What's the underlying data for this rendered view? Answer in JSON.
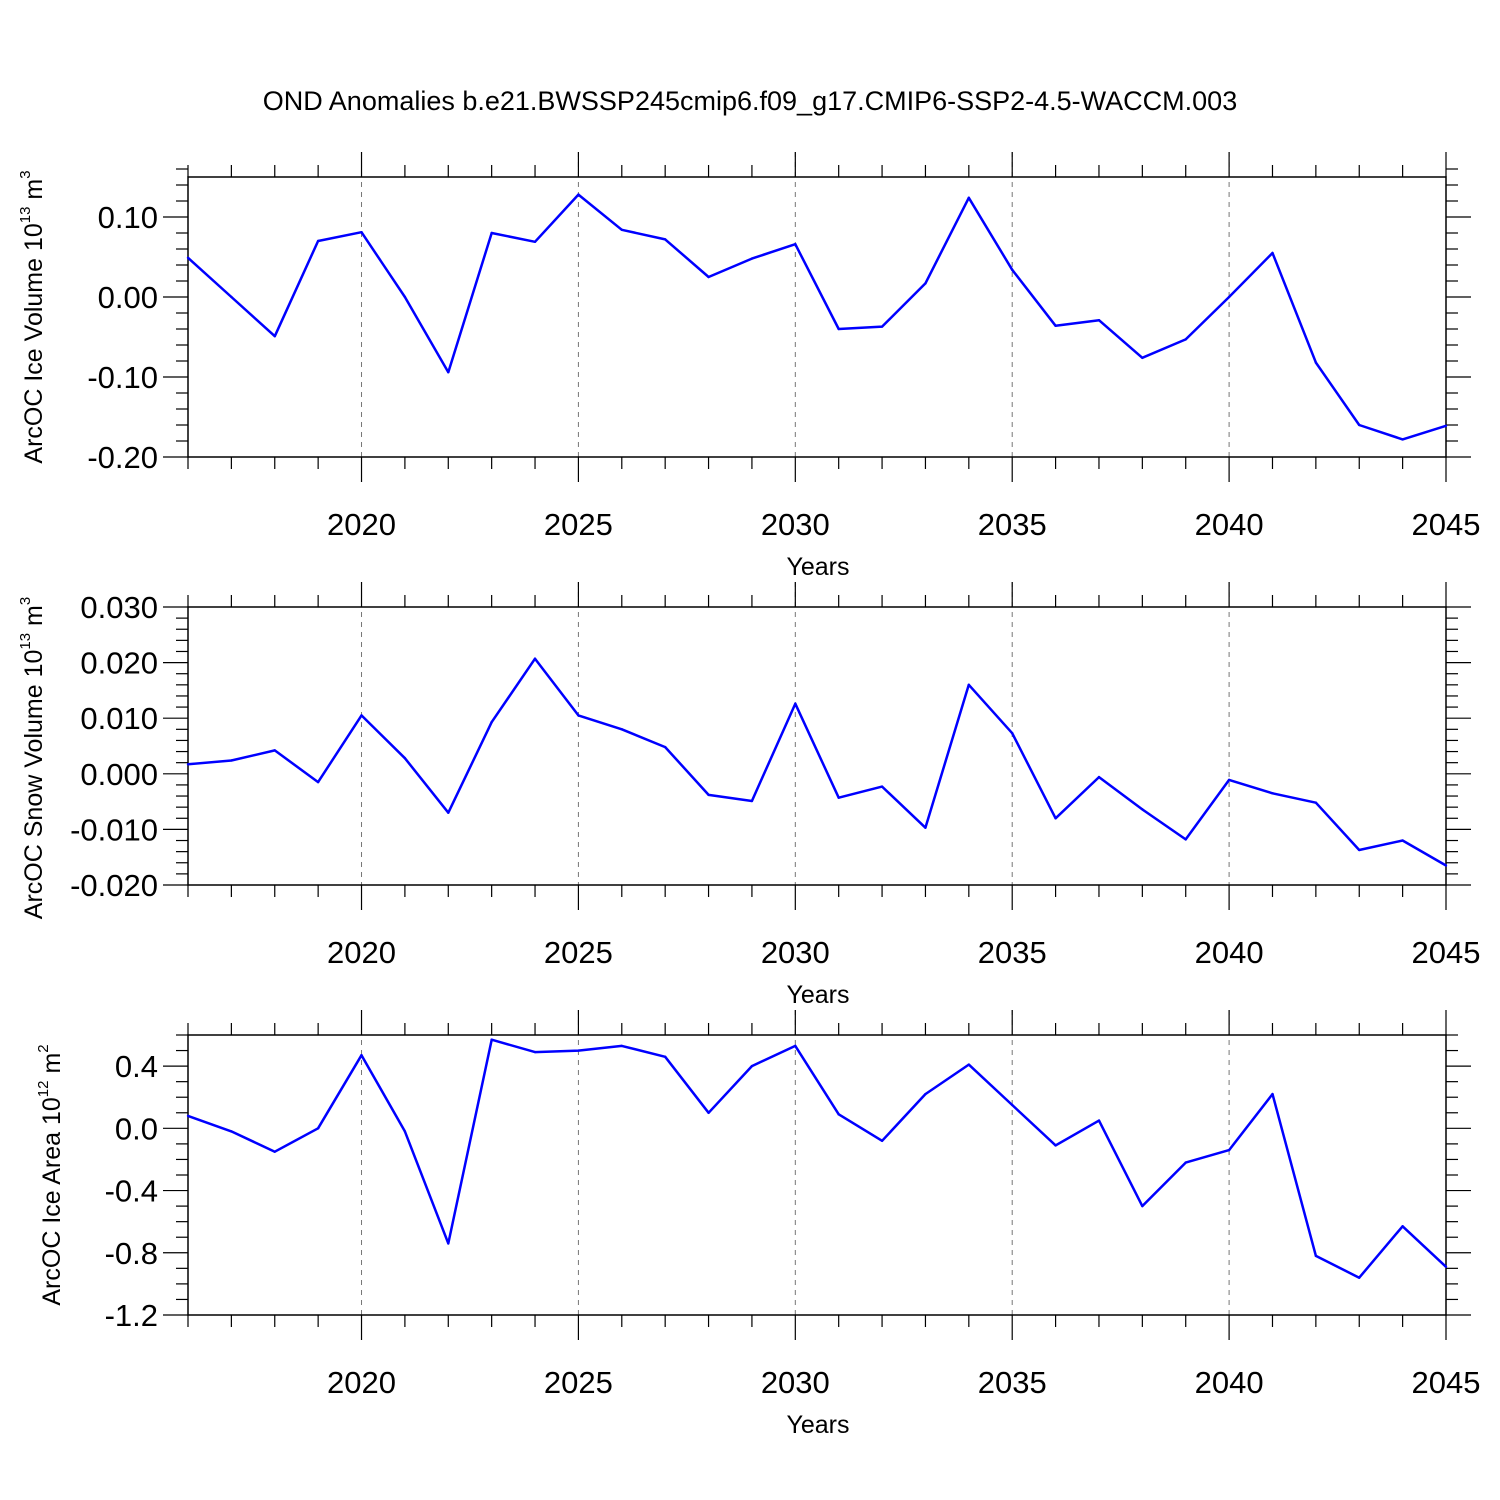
{
  "title": "OND Anomalies b.e21.BWSSP245cmip6.f09_g17.CMIP6-SSP2-4.5-WACCM.003",
  "colors": {
    "line": "#0000ff",
    "grid": "#777777",
    "axis": "#000000"
  },
  "chart_data": [
    {
      "type": "line",
      "panel": "ice-volume",
      "ylabel": {
        "text": "ArcOC Ice Volume 10",
        "sup": "13",
        "unit": " m",
        "unit_sup": "3"
      },
      "xlabel": "Years",
      "xlim": [
        2016,
        2045
      ],
      "ylim": [
        -0.2,
        0.15
      ],
      "yticks": [
        -0.2,
        -0.1,
        0.0,
        0.1
      ],
      "ytick_labels": [
        "-0.20",
        "-0.10",
        "0.00",
        "0.10"
      ],
      "y_minor_step": 0.02,
      "xticks": [
        2020,
        2025,
        2030,
        2035,
        2040,
        2045
      ],
      "xtick_labels": [
        "2020",
        "2025",
        "2030",
        "2035",
        "2040",
        "2045"
      ],
      "grid_x": [
        2020,
        2025,
        2030,
        2035,
        2040
      ],
      "x": [
        2016,
        2017,
        2018,
        2019,
        2020,
        2021,
        2022,
        2023,
        2024,
        2025,
        2026,
        2027,
        2028,
        2029,
        2030,
        2031,
        2032,
        2033,
        2034,
        2035,
        2036,
        2037,
        2038,
        2039,
        2040,
        2041,
        2042,
        2043,
        2044,
        2045
      ],
      "series": [
        {
          "name": "ArcOC Ice Volume",
          "values": [
            0.049,
            0.0,
            -0.049,
            0.07,
            0.081,
            0.0,
            -0.094,
            0.08,
            0.069,
            0.128,
            0.084,
            0.072,
            0.025,
            0.048,
            0.066,
            -0.04,
            -0.037,
            0.017,
            0.124,
            0.034,
            -0.036,
            -0.029,
            -0.076,
            -0.053,
            0.0,
            0.055,
            -0.082,
            -0.16,
            -0.178,
            -0.161
          ]
        }
      ]
    },
    {
      "type": "line",
      "panel": "snow-volume",
      "ylabel": {
        "text": "ArcOC Snow Volume 10",
        "sup": "13",
        "unit": " m",
        "unit_sup": "3"
      },
      "xlabel": "Years",
      "xlim": [
        2016,
        2045
      ],
      "ylim": [
        -0.02,
        0.03
      ],
      "yticks": [
        -0.02,
        -0.01,
        0.0,
        0.01,
        0.02,
        0.03
      ],
      "ytick_labels": [
        "-0.020",
        "-0.010",
        "0.000",
        "0.010",
        "0.020",
        "0.030"
      ],
      "y_minor_step": 0.002,
      "xticks": [
        2020,
        2025,
        2030,
        2035,
        2040,
        2045
      ],
      "xtick_labels": [
        "2020",
        "2025",
        "2030",
        "2035",
        "2040",
        "2045"
      ],
      "grid_x": [
        2020,
        2025,
        2030,
        2035,
        2040
      ],
      "x": [
        2016,
        2017,
        2018,
        2019,
        2020,
        2021,
        2022,
        2023,
        2024,
        2025,
        2026,
        2027,
        2028,
        2029,
        2030,
        2031,
        2032,
        2033,
        2034,
        2035,
        2036,
        2037,
        2038,
        2039,
        2040,
        2041,
        2042,
        2043,
        2044,
        2045
      ],
      "series": [
        {
          "name": "ArcOC Snow Volume",
          "values": [
            0.0017,
            0.0024,
            0.0042,
            -0.0015,
            0.0105,
            0.0028,
            -0.007,
            0.0093,
            0.0207,
            0.0105,
            0.008,
            0.0048,
            -0.0038,
            -0.0049,
            0.0126,
            -0.0043,
            -0.0023,
            -0.0097,
            0.016,
            0.0073,
            -0.008,
            -0.0006,
            -0.0064,
            -0.0118,
            -0.0011,
            -0.0035,
            -0.0052,
            -0.0137,
            -0.012,
            -0.0165
          ]
        }
      ]
    },
    {
      "type": "line",
      "panel": "ice-area",
      "ylabel": {
        "text": "ArcOC Ice Area 10",
        "sup": "12",
        "unit": " m",
        "unit_sup": "2"
      },
      "xlabel": "Years",
      "xlim": [
        2016,
        2045
      ],
      "ylim": [
        -1.2,
        0.6
      ],
      "yticks": [
        -1.2,
        -0.8,
        -0.4,
        0.0,
        0.4
      ],
      "ytick_labels": [
        "-1.2",
        "-0.8",
        "-0.4",
        "0.0",
        "0.4"
      ],
      "y_minor_step": 0.1,
      "xticks": [
        2020,
        2025,
        2030,
        2035,
        2040,
        2045
      ],
      "xtick_labels": [
        "2020",
        "2025",
        "2030",
        "2035",
        "2040",
        "2045"
      ],
      "grid_x": [
        2020,
        2025,
        2030,
        2035,
        2040
      ],
      "x": [
        2016,
        2017,
        2018,
        2019,
        2020,
        2021,
        2022,
        2023,
        2024,
        2025,
        2026,
        2027,
        2028,
        2029,
        2030,
        2031,
        2032,
        2033,
        2034,
        2035,
        2036,
        2037,
        2038,
        2039,
        2040,
        2041,
        2042,
        2043,
        2044,
        2045
      ],
      "series": [
        {
          "name": "ArcOC Ice Area",
          "values": [
            0.08,
            -0.02,
            -0.15,
            0.0,
            0.47,
            -0.02,
            -0.74,
            0.57,
            0.49,
            0.5,
            0.53,
            0.46,
            0.1,
            0.4,
            0.53,
            0.09,
            -0.08,
            0.22,
            0.41,
            0.15,
            -0.11,
            0.05,
            -0.5,
            -0.22,
            -0.14,
            0.22,
            -0.82,
            -0.96,
            -0.63,
            -0.89
          ]
        }
      ]
    }
  ]
}
